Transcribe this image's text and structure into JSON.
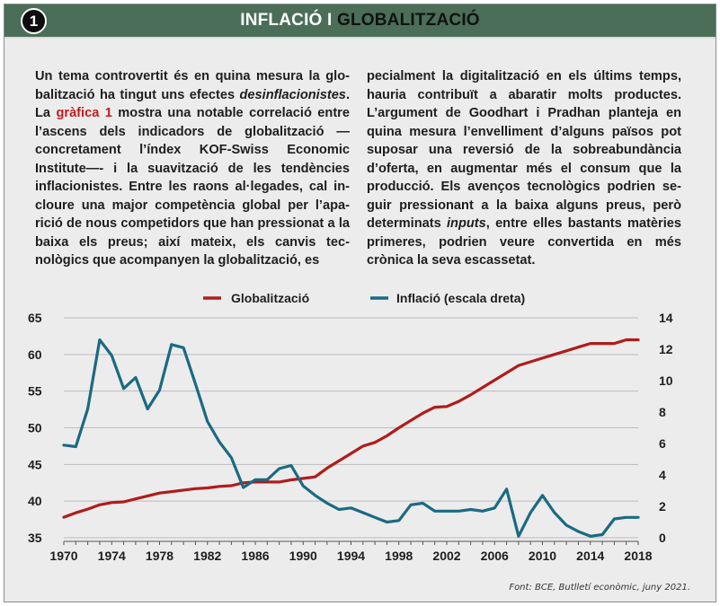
{
  "header": {
    "badge": "1",
    "title_part1": "INFLACIÓ I ",
    "title_part2": "GLOBALITZACIÓ"
  },
  "text": {
    "left": [
      {
        "t": "Un tema controvertit és en quina mesura la glo­balització ha tingut uns efectes "
      },
      {
        "t": "desinflacionis­tes",
        "style": "it"
      },
      {
        "t": ". La "
      },
      {
        "t": "gràfica 1",
        "style": "hl"
      },
      {
        "t": " mostra una notable correlació entre l’ascens dels indicadors de globalització —concretament l’índex KOF-Swiss Economic Institute—- i la suavització de les tendències inflacionistes. Entre les raons al·legades, cal in­cloure una major competència global per l’apa­rició de nous competidors que han pressionat a la baixa els preus; així mateix, els canvis tec­nològics que acompanyen la globalització, es­"
      }
    ],
    "right": [
      {
        "t": "pecialment la digitalització en els últims temps, hauria contribuït a abaratir molts productes. L’argument de Goodhart i Pradhan planteja en quina mesura l’envelliment d’alguns països pot suposar una reversió de la sobreabundància d’oferta, en augmentar més el consum que la producció. Els avenços tecnològics podrien se­guir pressionant a la baixa alguns preus, però determinats "
      },
      {
        "t": "inputs",
        "style": "it"
      },
      {
        "t": ", entre elles bastants matè­ries primeres, podrien veure convertida en més crònica la seva escassetat."
      }
    ]
  },
  "colors": {
    "header_bg": "#4a6e57",
    "globalitzacio": "#b01c1c",
    "inflacio": "#1a6a82",
    "highlight": "#c21d1d"
  },
  "source": "Font: BCE, Butlletí econòmic, juny 2021.",
  "chart_data": {
    "type": "line",
    "legend_position": "top-center",
    "grid": "horizontal",
    "x": [
      1970,
      1971,
      1972,
      1973,
      1974,
      1975,
      1976,
      1977,
      1978,
      1979,
      1980,
      1981,
      1982,
      1983,
      1984,
      1985,
      1986,
      1987,
      1988,
      1989,
      1990,
      1991,
      1992,
      1993,
      1994,
      1995,
      1996,
      1997,
      1998,
      1999,
      2000,
      2001,
      2002,
      2003,
      2004,
      2005,
      2006,
      2007,
      2008,
      2009,
      2010,
      2011,
      2012,
      2013,
      2014,
      2015,
      2016,
      2017,
      2018
    ],
    "xticks": [
      "1970",
      "1974",
      "1978",
      "1982",
      "1986",
      "1990",
      "1994",
      "1998",
      "2002",
      "2006",
      "2010",
      "2014",
      "2018"
    ],
    "xlim": [
      1970,
      2018
    ],
    "yticks_left": [
      "35",
      "40",
      "45",
      "50",
      "55",
      "60",
      "65"
    ],
    "ylim_left": [
      35,
      65
    ],
    "yticks_right": [
      "0",
      "2",
      "4",
      "6",
      "8",
      "10",
      "12",
      "14"
    ],
    "ylim_right": [
      0,
      14
    ],
    "series": [
      {
        "name": "Globalització",
        "axis": "left",
        "values": [
          37.8,
          38.4,
          38.9,
          39.5,
          39.8,
          39.9,
          40.3,
          40.7,
          41.1,
          41.3,
          41.5,
          41.7,
          41.8,
          42.0,
          42.1,
          42.5,
          42.6,
          42.6,
          42.6,
          42.9,
          43.1,
          43.3,
          44.5,
          45.5,
          46.5,
          47.5,
          48.0,
          48.9,
          50.0,
          51.0,
          52.0,
          52.8,
          52.9,
          53.6,
          54.5,
          55.5,
          56.5,
          57.5,
          58.5,
          59.0,
          59.5,
          60.0,
          60.5,
          61.0,
          61.5,
          61.5,
          61.5,
          62.0,
          62.0
        ]
      },
      {
        "name": "Inflació (escala dreta)",
        "axis": "right",
        "values": [
          5.9,
          5.8,
          8.2,
          12.6,
          11.6,
          9.5,
          10.2,
          8.2,
          9.4,
          12.3,
          12.1,
          9.8,
          7.4,
          6.1,
          5.1,
          3.2,
          3.7,
          3.7,
          4.4,
          4.6,
          3.3,
          2.7,
          2.2,
          1.8,
          1.9,
          1.6,
          1.3,
          1.0,
          1.1,
          2.1,
          2.2,
          1.7,
          1.7,
          1.7,
          1.8,
          1.7,
          1.9,
          3.1,
          0.1,
          1.6,
          2.7,
          1.6,
          0.8,
          0.4,
          0.1,
          0.2,
          1.2,
          1.3,
          1.3
        ]
      }
    ]
  }
}
